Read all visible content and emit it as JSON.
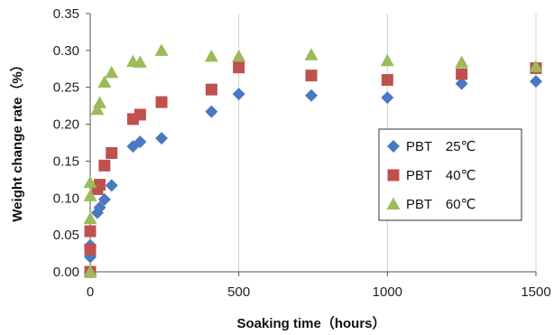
{
  "chart_data": {
    "type": "scatter",
    "title": "",
    "xlabel": "Soaking time（hours）",
    "ylabel": "Weight change rate（%）",
    "xlim": [
      0,
      1500
    ],
    "ylim": [
      0,
      0.35
    ],
    "xticks": [
      "0",
      "500",
      "1000",
      "1500"
    ],
    "yticks": [
      "0.00",
      "0.05",
      "0.10",
      "0.15",
      "0.20",
      "0.25",
      "0.30",
      "0.35"
    ],
    "grid": "vertical",
    "legend_position": "right",
    "series": [
      {
        "name": "PBT　25℃",
        "marker": "diamond",
        "color": "#4a78c2",
        "x": [
          0,
          0,
          0,
          0,
          24,
          32,
          48,
          72,
          144,
          168,
          240,
          408,
          500,
          744,
          1000,
          1250,
          1500
        ],
        "y": [
          0.0,
          0.02,
          0.033,
          0.036,
          0.08,
          0.087,
          0.098,
          0.117,
          0.17,
          0.176,
          0.181,
          0.217,
          0.241,
          0.239,
          0.236,
          0.255,
          0.258
        ]
      },
      {
        "name": "PBT　40℃",
        "marker": "square",
        "color": "#c0504d",
        "x": [
          0,
          0,
          0,
          24,
          32,
          48,
          72,
          144,
          168,
          240,
          408,
          500,
          744,
          1000,
          1250,
          1500
        ],
        "y": [
          0.0,
          0.03,
          0.055,
          0.112,
          0.118,
          0.144,
          0.161,
          0.207,
          0.213,
          0.23,
          0.247,
          0.277,
          0.266,
          0.26,
          0.268,
          0.276
        ]
      },
      {
        "name": "PBT　60℃",
        "marker": "triangle",
        "color": "#9bbb59",
        "x": [
          0,
          0,
          0,
          0,
          24,
          32,
          48,
          72,
          144,
          168,
          240,
          408,
          500,
          744,
          1000,
          1250,
          1500
        ],
        "y": [
          0.0,
          0.072,
          0.103,
          0.121,
          0.22,
          0.229,
          0.257,
          0.27,
          0.285,
          0.284,
          0.3,
          0.292,
          0.292,
          0.294,
          0.286,
          0.284,
          0.278
        ]
      }
    ]
  }
}
